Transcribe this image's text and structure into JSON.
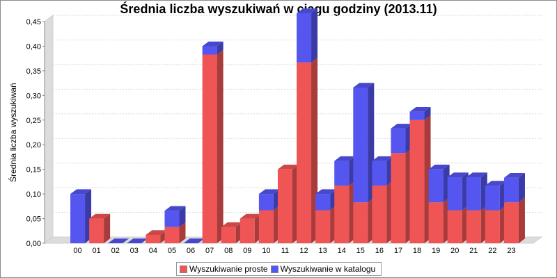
{
  "chart_data": {
    "type": "bar",
    "stacked": true,
    "three_d": true,
    "title": "Średnia liczba wyszukiwań w ciągu godziny (2013.11)",
    "xlabel": "",
    "ylabel": "Średnia liczba wyszukiwań",
    "categories": [
      "00",
      "01",
      "02",
      "03",
      "04",
      "05",
      "06",
      "07",
      "08",
      "09",
      "10",
      "11",
      "12",
      "13",
      "14",
      "15",
      "16",
      "17",
      "18",
      "19",
      "20",
      "21",
      "22",
      "23"
    ],
    "ylim": [
      0,
      0.45
    ],
    "yticks": [
      "0,00",
      "0,05",
      "0,10",
      "0,15",
      "0,20",
      "0,25",
      "0,30",
      "0,35",
      "0,40",
      "0,45"
    ],
    "grid": true,
    "legend_position": "bottom",
    "series": [
      {
        "name": "Wyszukiwanie proste",
        "color": "#f05555",
        "values": [
          0,
          0.05,
          0,
          0,
          0.017,
          0.033,
          0,
          0.383,
          0.033,
          0.05,
          0.067,
          0.15,
          0.367,
          0.067,
          0.117,
          0.083,
          0.117,
          0.183,
          0.25,
          0.083,
          0.067,
          0.067,
          0.067,
          0.083
        ]
      },
      {
        "name": "Wyszukiwanie w katalogu",
        "color": "#5555f0",
        "values": [
          0.1,
          0,
          0,
          0,
          0,
          0.033,
          0,
          0.017,
          0,
          0,
          0.033,
          0,
          0.1,
          0.033,
          0.05,
          0.233,
          0.05,
          0.05,
          0.017,
          0.067,
          0.067,
          0.067,
          0.05,
          0.05
        ]
      }
    ]
  }
}
